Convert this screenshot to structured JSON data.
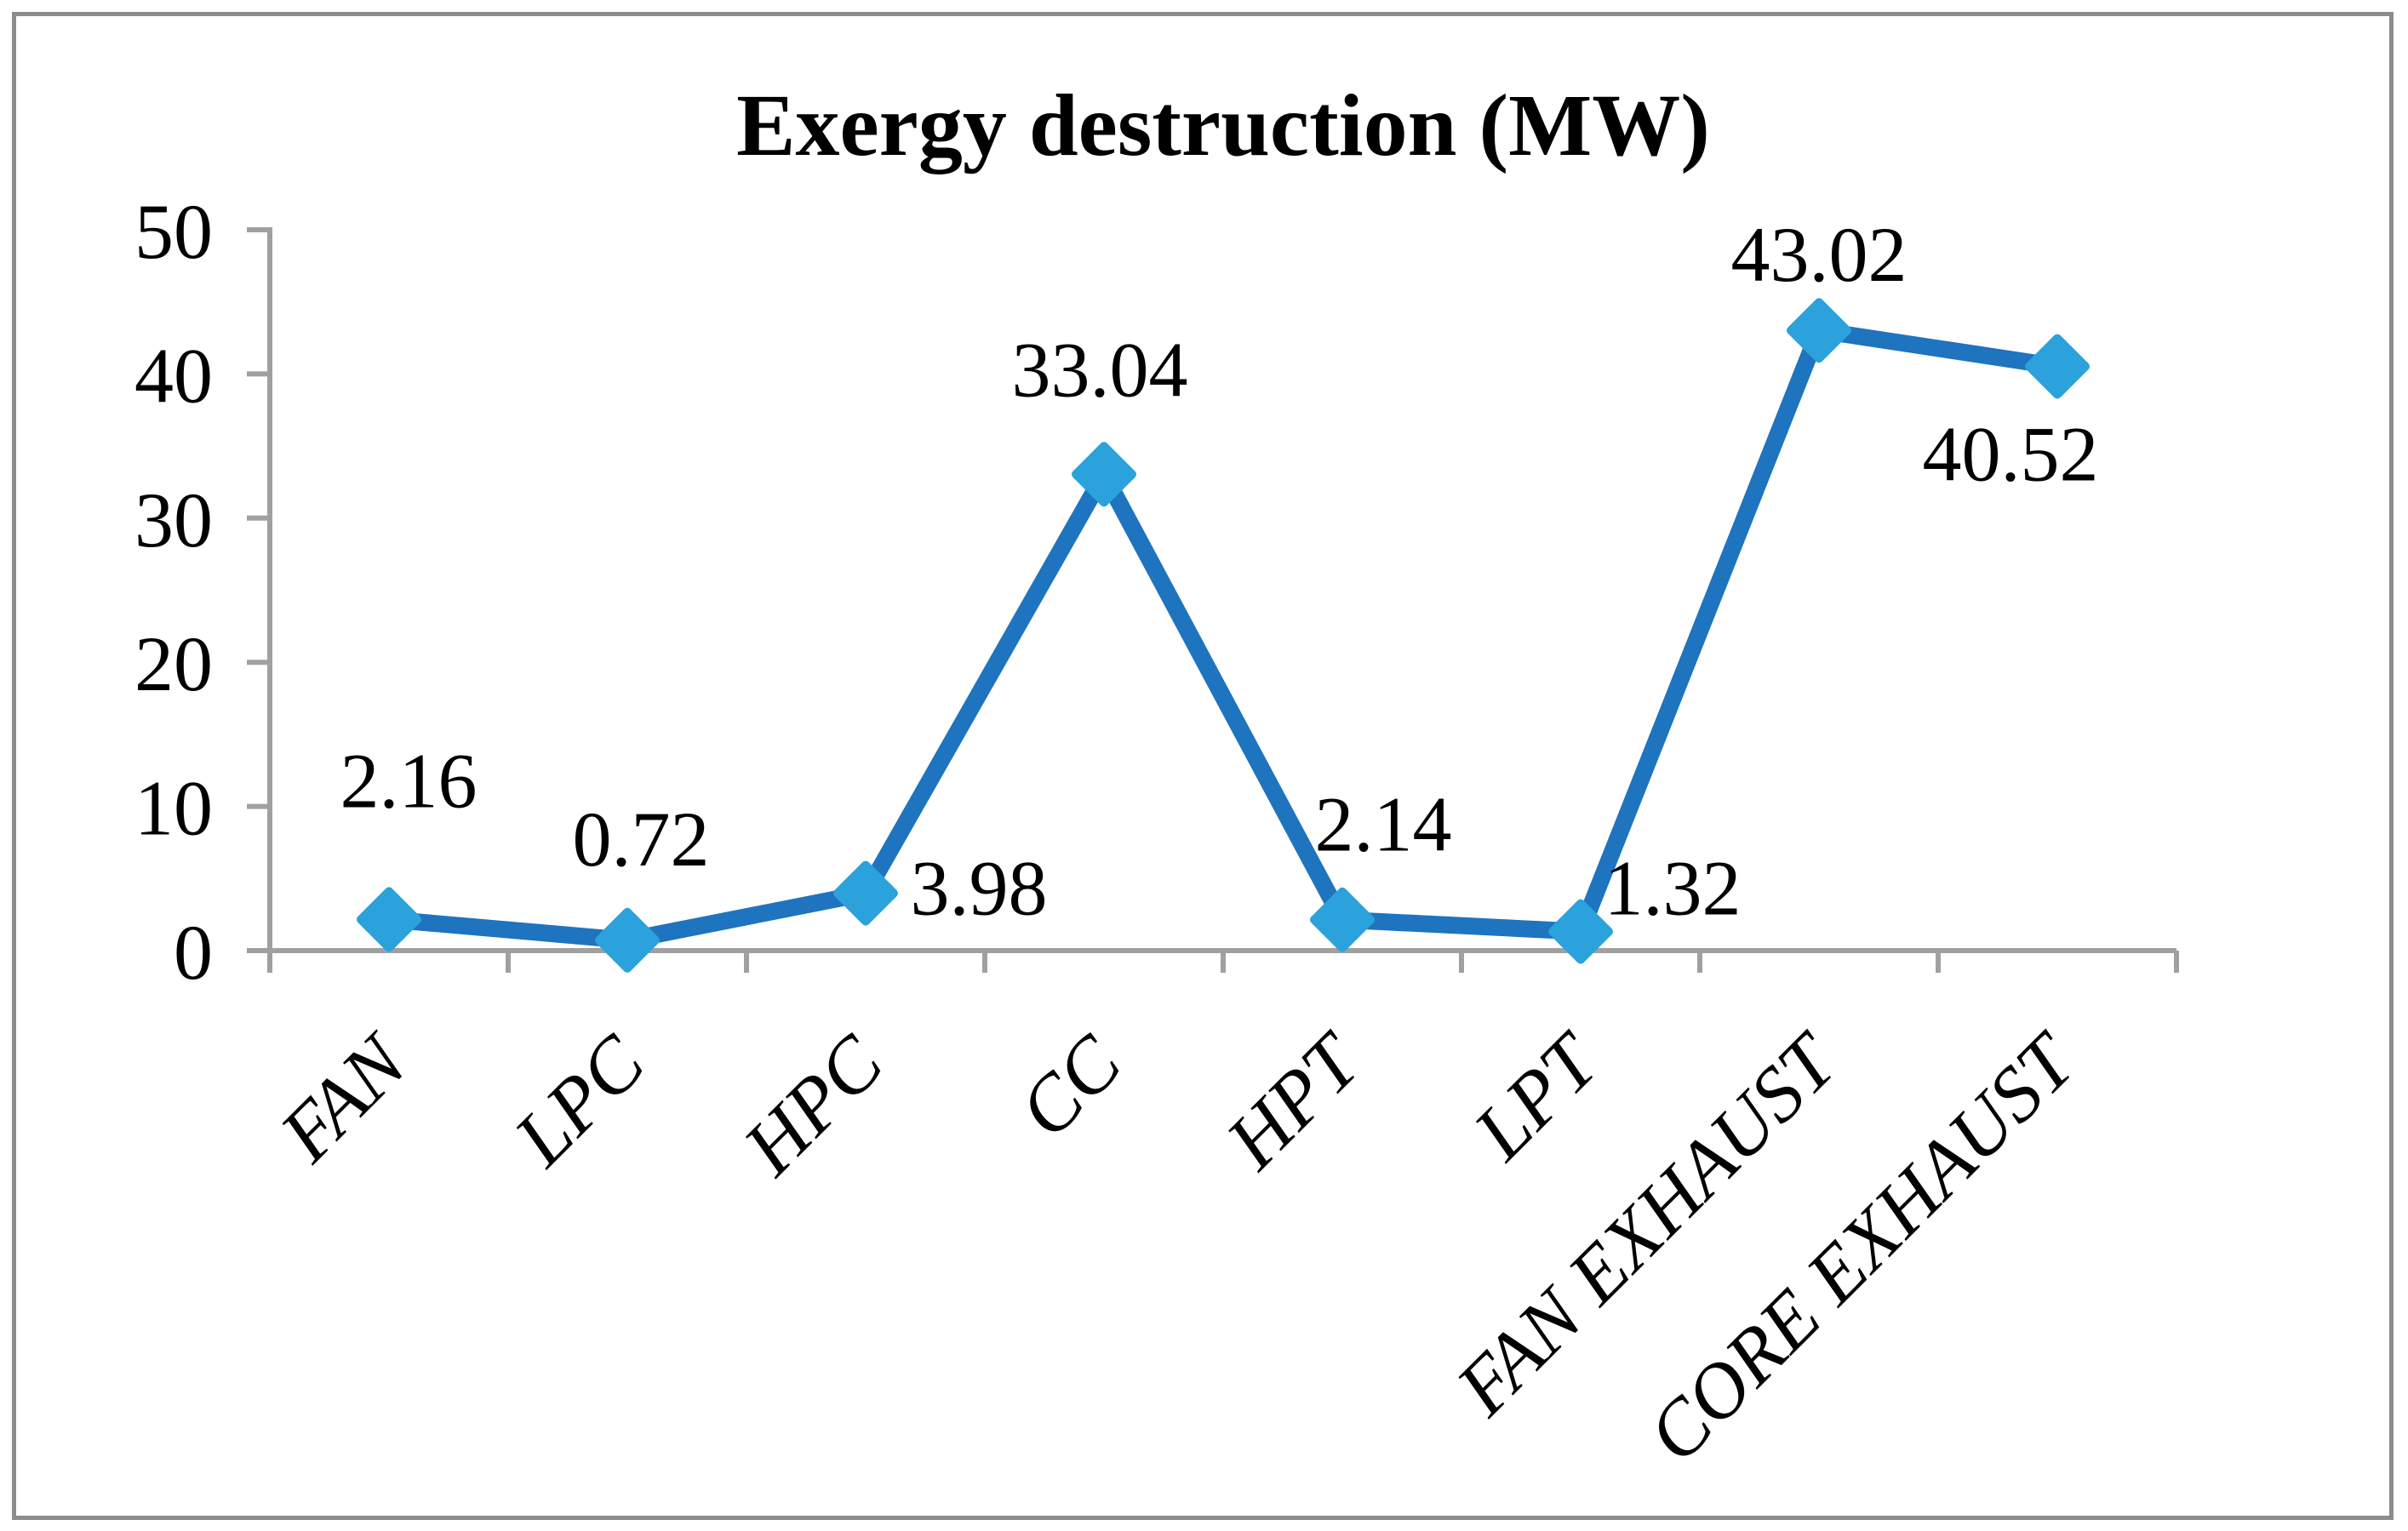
{
  "chart_data": {
    "type": "line",
    "title": "Exergy destruction (MW)",
    "categories": [
      "FAN",
      "LPC",
      "HPC",
      "CC",
      "HPT",
      "LPT",
      "FAN EXHAUST",
      "CORE EXHAUST"
    ],
    "values": [
      2.16,
      0.72,
      3.98,
      33.04,
      2.14,
      1.32,
      43.02,
      40.52
    ],
    "data_labels": [
      "2.16",
      "0.72",
      "3.98",
      "33.04",
      "2.14",
      "1.32",
      "43.02",
      "40.52"
    ],
    "xlabel": "",
    "ylabel": "",
    "ylim": [
      0,
      50
    ],
    "y_ticks": [
      0,
      10,
      20,
      30,
      40,
      50
    ],
    "grid": false,
    "legend": "none",
    "marker_shape": "diamond",
    "colors": {
      "line": "#1E74BE",
      "marker": "#2BA2DB",
      "axis": "#A0A0A0",
      "text": "#000000",
      "frame": "#8C8C8C",
      "background": "#FFFFFF"
    }
  }
}
